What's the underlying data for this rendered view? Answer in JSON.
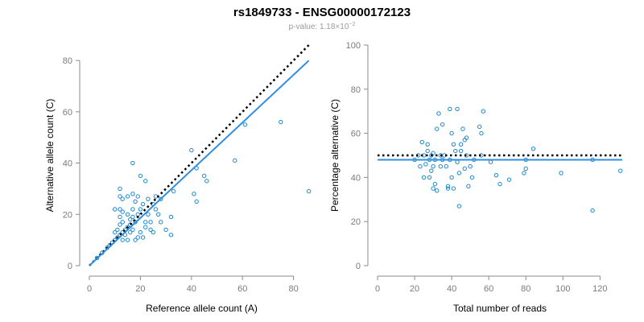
{
  "header": {
    "title": "rs1849733 - ENSG00000172123",
    "pvalue_prefix": "p-value: 1.18×10",
    "pvalue_exp": "−2"
  },
  "colors": {
    "points": "#1f87c9",
    "fit_line": "#2f8fe3",
    "reference_line": "#000000",
    "axis": "#8a8a8a",
    "tick_text": "#7a7a7a",
    "label_text": "#000000",
    "subtitle": "#9a9a9a"
  },
  "chart_data": [
    {
      "type": "scatter",
      "title": "",
      "xlabel": "Reference allele count (A)",
      "ylabel": "Alternative allele count (C)",
      "xlim": [
        0,
        88
      ],
      "ylim": [
        0,
        86
      ],
      "xticks": [
        0,
        20,
        40,
        60,
        80
      ],
      "yticks": [
        0,
        20,
        40,
        60,
        80
      ],
      "grid": false,
      "points": [
        [
          3,
          3
        ],
        [
          5,
          5
        ],
        [
          7,
          7
        ],
        [
          8,
          8
        ],
        [
          9,
          9
        ],
        [
          10,
          10
        ],
        [
          10,
          13
        ],
        [
          10,
          22
        ],
        [
          11,
          11
        ],
        [
          11,
          14
        ],
        [
          12,
          12
        ],
        [
          12,
          16
        ],
        [
          12,
          19
        ],
        [
          12,
          22
        ],
        [
          12,
          27
        ],
        [
          12,
          30
        ],
        [
          13,
          10
        ],
        [
          13,
          13
        ],
        [
          13,
          17
        ],
        [
          13,
          21
        ],
        [
          13,
          26
        ],
        [
          14,
          12
        ],
        [
          14,
          14
        ],
        [
          15,
          10
        ],
        [
          15,
          15
        ],
        [
          15,
          20
        ],
        [
          15,
          27
        ],
        [
          16,
          13
        ],
        [
          16,
          16
        ],
        [
          16,
          18
        ],
        [
          17,
          14
        ],
        [
          17,
          19
        ],
        [
          17,
          22
        ],
        [
          17,
          28
        ],
        [
          17,
          40
        ],
        [
          18,
          10
        ],
        [
          18,
          17
        ],
        [
          18,
          25
        ],
        [
          19,
          11
        ],
        [
          19,
          20
        ],
        [
          19,
          27
        ],
        [
          20,
          13
        ],
        [
          20,
          22
        ],
        [
          20,
          35
        ],
        [
          21,
          11
        ],
        [
          21,
          24
        ],
        [
          22,
          15
        ],
        [
          22,
          17
        ],
        [
          22,
          33
        ],
        [
          23,
          20
        ],
        [
          23,
          26
        ],
        [
          24,
          14
        ],
        [
          24,
          17
        ],
        [
          25,
          13
        ],
        [
          25,
          24
        ],
        [
          26,
          22
        ],
        [
          26,
          27
        ],
        [
          27,
          20
        ],
        [
          28,
          17
        ],
        [
          28,
          26
        ],
        [
          30,
          14
        ],
        [
          32,
          12
        ],
        [
          32,
          19
        ],
        [
          33,
          29
        ],
        [
          40,
          45
        ],
        [
          41,
          28
        ],
        [
          42,
          25
        ],
        [
          42,
          38
        ],
        [
          45,
          35
        ],
        [
          46,
          33
        ],
        [
          57,
          41
        ],
        [
          61,
          55
        ],
        [
          75,
          56
        ],
        [
          86,
          29
        ]
      ],
      "reference_line": {
        "style": "dotted",
        "slope": 1,
        "intercept": 0,
        "x_range": [
          0,
          86
        ]
      },
      "fit_line": {
        "slope": 0.93,
        "intercept": 0,
        "x_range": [
          0,
          86
        ]
      }
    },
    {
      "type": "scatter",
      "title": "",
      "xlabel": "Total number of reads",
      "ylabel": "Percentage alternative (C)",
      "xlim": [
        0,
        132
      ],
      "ylim": [
        0,
        100
      ],
      "xticks": [
        0,
        20,
        40,
        60,
        80,
        100,
        120
      ],
      "yticks": [
        0,
        20,
        40,
        60,
        80,
        100
      ],
      "grid": false,
      "points": [
        [
          20,
          48
        ],
        [
          22,
          50
        ],
        [
          23,
          45
        ],
        [
          24,
          56
        ],
        [
          25,
          50
        ],
        [
          25,
          40
        ],
        [
          26,
          46
        ],
        [
          27,
          55
        ],
        [
          27,
          52
        ],
        [
          28,
          48
        ],
        [
          28,
          40
        ],
        [
          29,
          50
        ],
        [
          29,
          43
        ],
        [
          30,
          51
        ],
        [
          30,
          45
        ],
        [
          30,
          35
        ],
        [
          31,
          48
        ],
        [
          31,
          37
        ],
        [
          32,
          62
        ],
        [
          32,
          34
        ],
        [
          33,
          69
        ],
        [
          34,
          50
        ],
        [
          34,
          45
        ],
        [
          35,
          64
        ],
        [
          35,
          48
        ],
        [
          36,
          50
        ],
        [
          37,
          45
        ],
        [
          38,
          36
        ],
        [
          38,
          35
        ],
        [
          39,
          71
        ],
        [
          39,
          48
        ],
        [
          40,
          60
        ],
        [
          40,
          40
        ],
        [
          41,
          55
        ],
        [
          41,
          35
        ],
        [
          42,
          52
        ],
        [
          43,
          71
        ],
        [
          43,
          47
        ],
        [
          44,
          42
        ],
        [
          44,
          27
        ],
        [
          45,
          55
        ],
        [
          45,
          52
        ],
        [
          46,
          62
        ],
        [
          47,
          57
        ],
        [
          47,
          44
        ],
        [
          48,
          50
        ],
        [
          48,
          58
        ],
        [
          49,
          36
        ],
        [
          50,
          45
        ],
        [
          51,
          40
        ],
        [
          52,
          48
        ],
        [
          55,
          63
        ],
        [
          56,
          60
        ],
        [
          56,
          50
        ],
        [
          57,
          70
        ],
        [
          61,
          47
        ],
        [
          64,
          41
        ],
        [
          66,
          37
        ],
        [
          71,
          39
        ],
        [
          79,
          42
        ],
        [
          80,
          44
        ],
        [
          80,
          48
        ],
        [
          84,
          53
        ],
        [
          99,
          42
        ],
        [
          116,
          48
        ],
        [
          116,
          25
        ],
        [
          131,
          43
        ]
      ],
      "reference_line": {
        "style": "dotted",
        "y": 50
      },
      "fit_line": {
        "y": 48
      }
    }
  ]
}
